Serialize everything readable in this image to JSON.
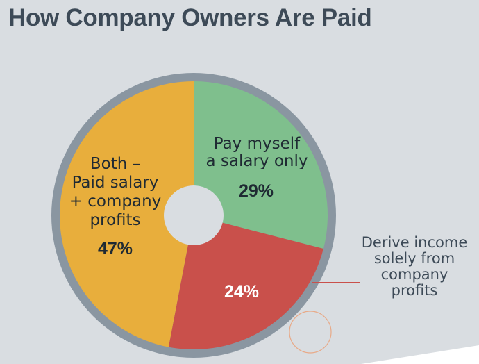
{
  "chart_data": {
    "type": "pie",
    "title": "How Company Owners Are Paid",
    "slices": [
      {
        "label_lines": [
          "Pay myself",
          "a salary only"
        ],
        "value": 29,
        "value_label": "29%",
        "color": "#7fbf8d",
        "pct_color": "#1f2a33"
      },
      {
        "label_lines": [
          "Derive income",
          "solely from",
          "company",
          "profits"
        ],
        "value": 24,
        "value_label": "24%",
        "color": "#c9504b",
        "pct_color": "#ffffff"
      },
      {
        "label_lines": [
          "Both –",
          "Paid salary",
          "+ company",
          "profits"
        ],
        "value": 47,
        "value_label": "47%",
        "color": "#e8ae3c",
        "pct_color": "#1f2a33"
      }
    ],
    "ring_color": "#8a96a1",
    "center_hole_color": "#d9dde1",
    "leader_color": "#c9504b",
    "accent_circle_color": "#e8a987"
  }
}
